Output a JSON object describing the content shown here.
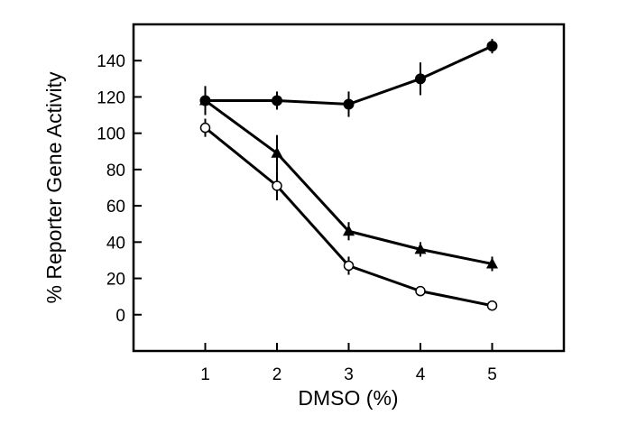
{
  "chart_data": {
    "type": "line",
    "title": "",
    "xlabel": "DMSO (%)",
    "ylabel": "% Reporter Gene Activity",
    "x": [
      1,
      2,
      3,
      4,
      5
    ],
    "xlim": [
      0,
      6
    ],
    "ylim": [
      -20,
      160
    ],
    "xticks": [
      "1",
      "2",
      "3",
      "4",
      "5"
    ],
    "yticks": [
      "0",
      "20",
      "40",
      "60",
      "80",
      "100",
      "120",
      "140"
    ],
    "grid": false,
    "legend": "none",
    "series": [
      {
        "marker": "filled-circle",
        "color": "#000000",
        "values": [
          118,
          118,
          116,
          130,
          148
        ],
        "errors": [
          8,
          5,
          7,
          9,
          4
        ]
      },
      {
        "marker": "filled-triangle",
        "color": "#000000",
        "values": [
          118,
          89,
          46,
          36,
          28
        ],
        "errors": [
          6,
          10,
          5,
          4,
          4
        ]
      },
      {
        "marker": "open-circle",
        "color": "#000000",
        "values": [
          103,
          71,
          27,
          13,
          5
        ],
        "errors": [
          5,
          8,
          5,
          2,
          2
        ]
      }
    ]
  }
}
